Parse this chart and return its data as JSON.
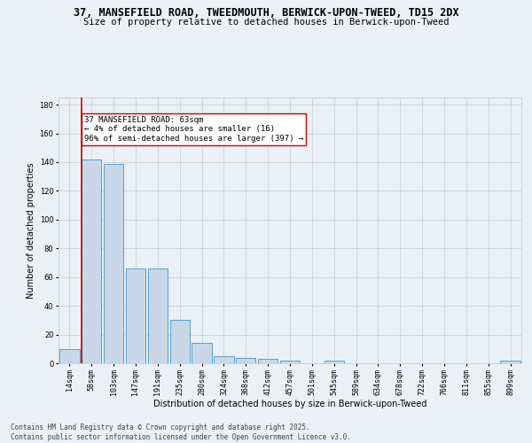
{
  "title_line1": "37, MANSEFIELD ROAD, TWEEDMOUTH, BERWICK-UPON-TWEED, TD15 2DX",
  "title_line2": "Size of property relative to detached houses in Berwick-upon-Tweed",
  "xlabel": "Distribution of detached houses by size in Berwick-upon-Tweed",
  "ylabel": "Number of detached properties",
  "categories": [
    "14sqm",
    "58sqm",
    "103sqm",
    "147sqm",
    "191sqm",
    "235sqm",
    "280sqm",
    "324sqm",
    "368sqm",
    "412sqm",
    "457sqm",
    "501sqm",
    "545sqm",
    "589sqm",
    "634sqm",
    "678sqm",
    "722sqm",
    "766sqm",
    "811sqm",
    "855sqm",
    "899sqm"
  ],
  "values": [
    10,
    142,
    139,
    66,
    66,
    30,
    14,
    5,
    4,
    3,
    2,
    0,
    2,
    0,
    0,
    0,
    0,
    0,
    0,
    0,
    2
  ],
  "bar_color": "#c8d8e8",
  "bar_edge_color": "#5a9fc8",
  "marker_color": "#cc0000",
  "annotation_line1": "37 MANSEFIELD ROAD: 63sqm",
  "annotation_line2": "← 4% of detached houses are smaller (16)",
  "annotation_line3": "96% of semi-detached houses are larger (397) →",
  "annotation_box_color": "#ffffff",
  "annotation_box_edge": "#cc0000",
  "ylim": [
    0,
    185
  ],
  "yticks": [
    0,
    20,
    40,
    60,
    80,
    100,
    120,
    140,
    160,
    180
  ],
  "grid_color": "#c8d4de",
  "background_color": "#eaf0f6",
  "footer_line1": "Contains HM Land Registry data © Crown copyright and database right 2025.",
  "footer_line2": "Contains public sector information licensed under the Open Government Licence v3.0.",
  "title_fontsize": 8.5,
  "subtitle_fontsize": 7.5,
  "axis_label_fontsize": 7,
  "tick_fontsize": 6,
  "annotation_fontsize": 6.5,
  "footer_fontsize": 5.5
}
